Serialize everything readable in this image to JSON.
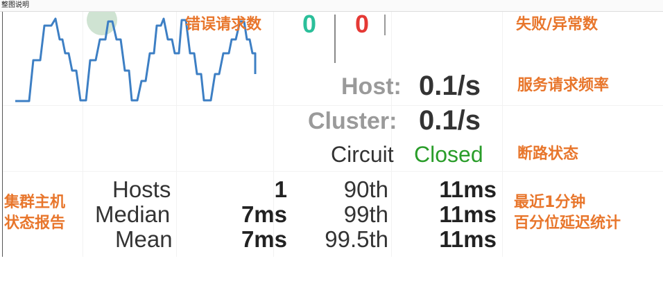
{
  "window": {
    "title": "整图说明"
  },
  "colors": {
    "annotation": "#e8762c",
    "success": "#2bbf9a",
    "failure": "#e53935",
    "closed": "#2a9d2a",
    "sparkline": "#3d7fc4",
    "host_dot": "#cfe3d2"
  },
  "annotations": {
    "error_requests": "错误请求数",
    "failure_exceptions": "失败/异常数",
    "service_rate": "服务请求频率",
    "circuit_state": "断路状态",
    "cluster_hosts_line1": "集群主机",
    "cluster_hosts_line2": "状态报告",
    "latency_line1": "最近1分钟",
    "latency_line2": "百分位延迟统计"
  },
  "counters": {
    "success": "0",
    "failure": "0"
  },
  "rates": {
    "host_label": "Host:",
    "host_value": "0.1/s",
    "cluster_label": "Cluster:",
    "cluster_value": "0.1/s"
  },
  "circuit": {
    "label": "Circuit",
    "state": "Closed"
  },
  "stats": {
    "hosts_label": "Hosts",
    "hosts_value": "1",
    "median_label": "Median",
    "median_value": "7ms",
    "mean_label": "Mean",
    "mean_value": "7ms",
    "p90_label": "90th",
    "p90_value": "11ms",
    "p99_label": "99th",
    "p99_value": "11ms",
    "p995_label": "99.5th",
    "p995_value": "11ms"
  }
}
